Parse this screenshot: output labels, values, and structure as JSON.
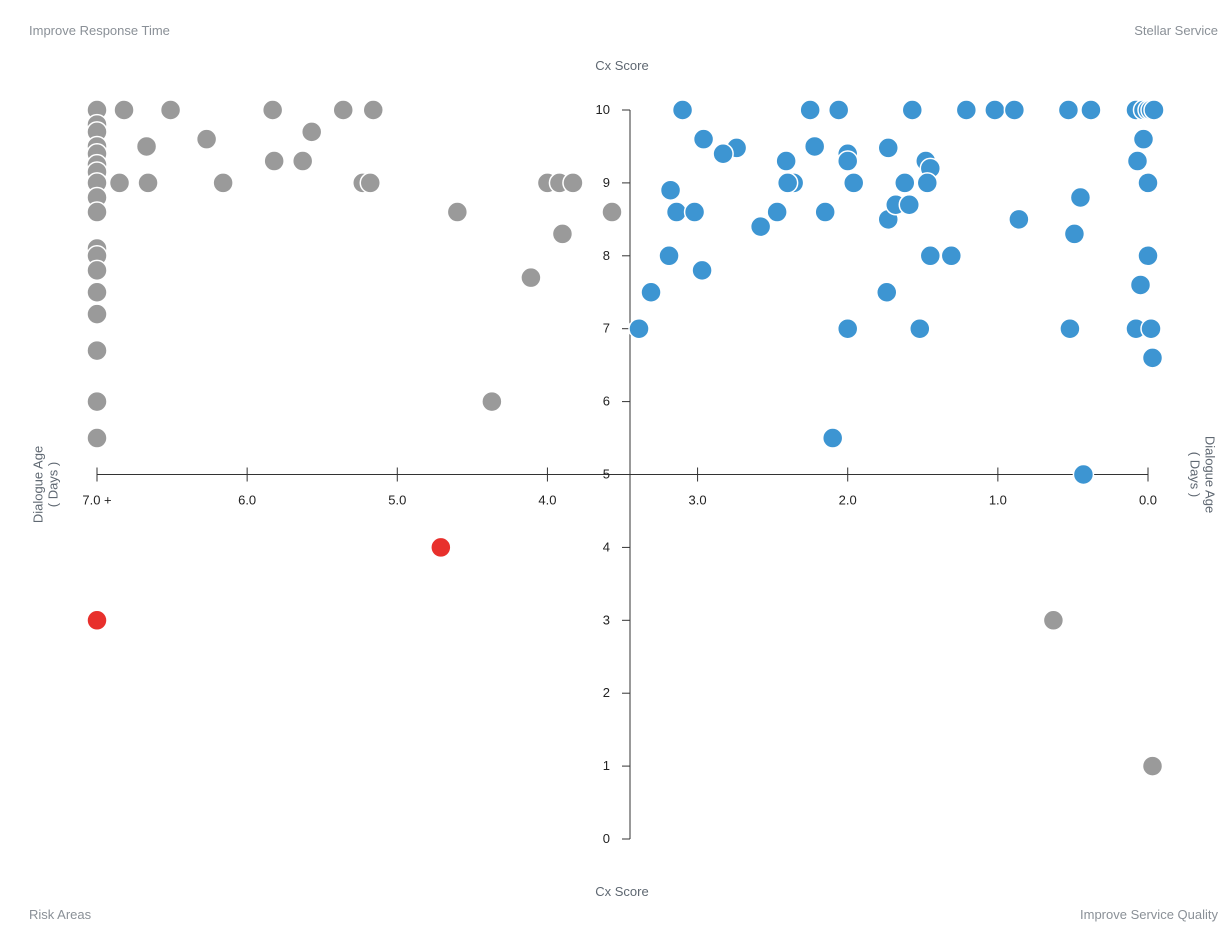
{
  "quadrants": {
    "top_left": "Improve Response Time",
    "top_right": "Stellar Service",
    "bottom_left": "Risk Areas",
    "bottom_right": "Improve Service Quality"
  },
  "colors": {
    "risk": "#e8302c",
    "good": "#3d95d2",
    "neutral": "#9a9a9a",
    "axis": "#333333"
  },
  "chart_data": {
    "type": "scatter",
    "xlabel": "Dialogue Age\n( Days )",
    "ylabel": "Cx Score",
    "x_reversed": true,
    "xlim": [
      7.0,
      0.0
    ],
    "ylim": [
      0,
      10
    ],
    "x_ticks": [
      7.0,
      6.0,
      5.0,
      4.0,
      3.0,
      2.0,
      1.0,
      0.0
    ],
    "x_tick_labels": [
      "7.0 +",
      "6.0",
      "5.0",
      "4.0",
      "3.0",
      "2.0",
      "1.0",
      "0.0"
    ],
    "y_ticks": [
      0,
      1,
      2,
      3,
      4,
      5,
      6,
      7,
      8,
      9,
      10
    ],
    "grid": false,
    "series": [
      {
        "color_key": "neutral",
        "points": [
          [
            7.0,
            10
          ],
          [
            6.82,
            10
          ],
          [
            6.51,
            10
          ],
          [
            5.83,
            10
          ],
          [
            5.36,
            10
          ],
          [
            5.16,
            10
          ],
          [
            7.0,
            9.8
          ],
          [
            7.0,
            9.7
          ],
          [
            7.0,
            9.5
          ],
          [
            7.0,
            9.4
          ],
          [
            7.0,
            9.25
          ],
          [
            7.0,
            9.15
          ],
          [
            7.0,
            9.0
          ],
          [
            7.0,
            8.8
          ],
          [
            7.0,
            8.6
          ],
          [
            7.0,
            8.1
          ],
          [
            7.0,
            8.0
          ],
          [
            7.0,
            7.8
          ],
          [
            7.0,
            7.5
          ],
          [
            7.0,
            7.2
          ],
          [
            7.0,
            6.7
          ],
          [
            7.0,
            6.0
          ],
          [
            7.0,
            5.5
          ],
          [
            6.27,
            9.6
          ],
          [
            6.67,
            9.5
          ],
          [
            5.57,
            9.7
          ],
          [
            5.82,
            9.3
          ],
          [
            5.63,
            9.3
          ],
          [
            6.85,
            9.0
          ],
          [
            6.66,
            9.0
          ],
          [
            6.16,
            9.0
          ],
          [
            5.23,
            9.0
          ],
          [
            5.18,
            9.0
          ],
          [
            4.0,
            9.0
          ],
          [
            3.92,
            9.0
          ],
          [
            3.83,
            9.0
          ],
          [
            4.6,
            8.6
          ],
          [
            3.57,
            8.6
          ],
          [
            3.9,
            8.3
          ],
          [
            4.11,
            7.7
          ],
          [
            4.37,
            6.0
          ],
          [
            0.63,
            3.0
          ],
          [
            -0.03,
            1.0
          ]
        ]
      },
      {
        "color_key": "good",
        "points": [
          [
            3.1,
            10
          ],
          [
            2.25,
            10
          ],
          [
            2.06,
            10
          ],
          [
            1.57,
            10
          ],
          [
            1.21,
            10
          ],
          [
            1.02,
            10
          ],
          [
            0.89,
            10
          ],
          [
            0.53,
            10
          ],
          [
            0.38,
            10
          ],
          [
            0.08,
            10
          ],
          [
            0.03,
            10
          ],
          [
            0.0,
            10
          ],
          [
            -0.02,
            10
          ],
          [
            -0.04,
            10
          ],
          [
            2.96,
            9.6
          ],
          [
            0.03,
            9.6
          ],
          [
            2.22,
            9.5
          ],
          [
            2.74,
            9.48
          ],
          [
            1.73,
            9.48
          ],
          [
            2.83,
            9.4
          ],
          [
            2.0,
            9.4
          ],
          [
            2.41,
            9.3
          ],
          [
            2.0,
            9.3
          ],
          [
            1.48,
            9.3
          ],
          [
            1.45,
            9.2
          ],
          [
            0.07,
            9.3
          ],
          [
            3.18,
            8.9
          ],
          [
            2.36,
            9.0
          ],
          [
            2.4,
            9.0
          ],
          [
            1.96,
            9.0
          ],
          [
            1.62,
            9.0
          ],
          [
            1.47,
            9.0
          ],
          [
            0.0,
            9.0
          ],
          [
            0.45,
            8.8
          ],
          [
            3.14,
            8.6
          ],
          [
            3.02,
            8.6
          ],
          [
            2.47,
            8.6
          ],
          [
            2.15,
            8.6
          ],
          [
            1.73,
            8.5
          ],
          [
            1.68,
            8.7
          ],
          [
            1.59,
            8.7
          ],
          [
            0.86,
            8.5
          ],
          [
            2.58,
            8.4
          ],
          [
            0.49,
            8.3
          ],
          [
            3.19,
            8.0
          ],
          [
            1.45,
            8.0
          ],
          [
            1.31,
            8.0
          ],
          [
            0.0,
            8.0
          ],
          [
            2.97,
            7.8
          ],
          [
            3.31,
            7.5
          ],
          [
            1.74,
            7.5
          ],
          [
            0.05,
            7.6
          ],
          [
            3.39,
            7.0
          ],
          [
            2.0,
            7.0
          ],
          [
            1.52,
            7.0
          ],
          [
            0.52,
            7.0
          ],
          [
            0.08,
            7.0
          ],
          [
            -0.02,
            7.0
          ],
          [
            -0.03,
            6.6
          ],
          [
            2.1,
            5.5
          ],
          [
            0.43,
            5.0
          ]
        ]
      },
      {
        "color_key": "risk",
        "points": [
          [
            7.0,
            3.0
          ],
          [
            4.71,
            4.0
          ]
        ]
      }
    ]
  }
}
